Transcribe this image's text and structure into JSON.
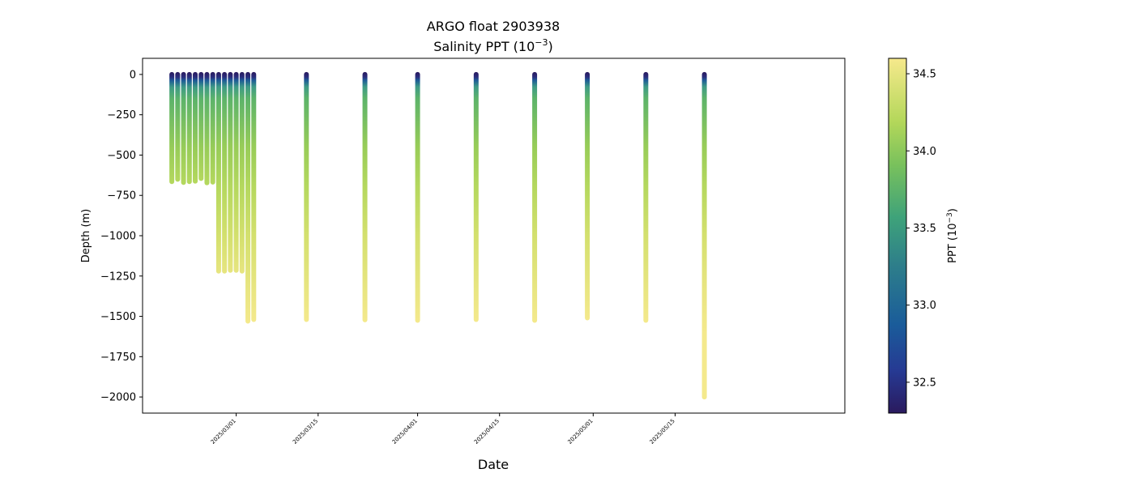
{
  "chart_data": {
    "type": "scatter",
    "title": "ARGO float 2903938",
    "subtitle_prefix": "Salinity PPT (10",
    "subtitle_exp": "−3",
    "subtitle_suffix": ")",
    "xlabel": "Date",
    "ylabel": "Depth (m)",
    "ylim": [
      -2100,
      100
    ],
    "xlim": [
      "2025-02-15",
      "2025-06-10"
    ],
    "y_ticks": [
      0,
      -250,
      -500,
      -750,
      -1000,
      -1250,
      -1500,
      -1750,
      -2000
    ],
    "y_tick_labels": [
      "0",
      "−250",
      "−500",
      "−750",
      "−1000",
      "−1250",
      "−1500",
      "−1750",
      "−2000"
    ],
    "x_ticks": [
      "2025-03-01",
      "2025-03-15",
      "2025-04-01",
      "2025-04-15",
      "2025-05-01",
      "2025-05-15"
    ],
    "x_tick_labels": [
      "2025/03/01",
      "2025/03/15",
      "2025/04/01",
      "2025/04/15",
      "2025/05/01",
      "2025/05/15"
    ],
    "colorbar": {
      "label_prefix": "PPT (10",
      "label_exp": "−3",
      "label_suffix": ")",
      "range": [
        32.3,
        34.6
      ],
      "ticks": [
        32.5,
        33.0,
        33.5,
        34.0,
        34.5
      ],
      "tick_labels": [
        "32.5",
        "33.0",
        "33.5",
        "34.0",
        "34.5"
      ],
      "colormap": "haline"
    },
    "profiles": [
      {
        "date": "2025-02-18",
        "max_depth": -665
      },
      {
        "date": "2025-02-19",
        "max_depth": -650
      },
      {
        "date": "2025-02-20",
        "max_depth": -670
      },
      {
        "date": "2025-02-21",
        "max_depth": -665
      },
      {
        "date": "2025-02-22",
        "max_depth": -662
      },
      {
        "date": "2025-02-23",
        "max_depth": -645
      },
      {
        "date": "2025-02-24",
        "max_depth": -672
      },
      {
        "date": "2025-02-25",
        "max_depth": -668
      },
      {
        "date": "2025-02-26",
        "max_depth": -1220
      },
      {
        "date": "2025-02-27",
        "max_depth": -1220
      },
      {
        "date": "2025-02-28",
        "max_depth": -1215
      },
      {
        "date": "2025-03-01",
        "max_depth": -1215
      },
      {
        "date": "2025-03-02",
        "max_depth": -1220
      },
      {
        "date": "2025-03-03",
        "max_depth": -1530
      },
      {
        "date": "2025-03-04",
        "max_depth": -1520
      },
      {
        "date": "2025-03-13",
        "max_depth": -1520
      },
      {
        "date": "2025-03-23",
        "max_depth": -1522
      },
      {
        "date": "2025-04-01",
        "max_depth": -1525
      },
      {
        "date": "2025-04-11",
        "max_depth": -1520
      },
      {
        "date": "2025-04-21",
        "max_depth": -1525
      },
      {
        "date": "2025-04-30",
        "max_depth": -1510
      },
      {
        "date": "2025-05-10",
        "max_depth": -1525
      },
      {
        "date": "2025-05-20",
        "max_depth": -2000
      }
    ]
  }
}
